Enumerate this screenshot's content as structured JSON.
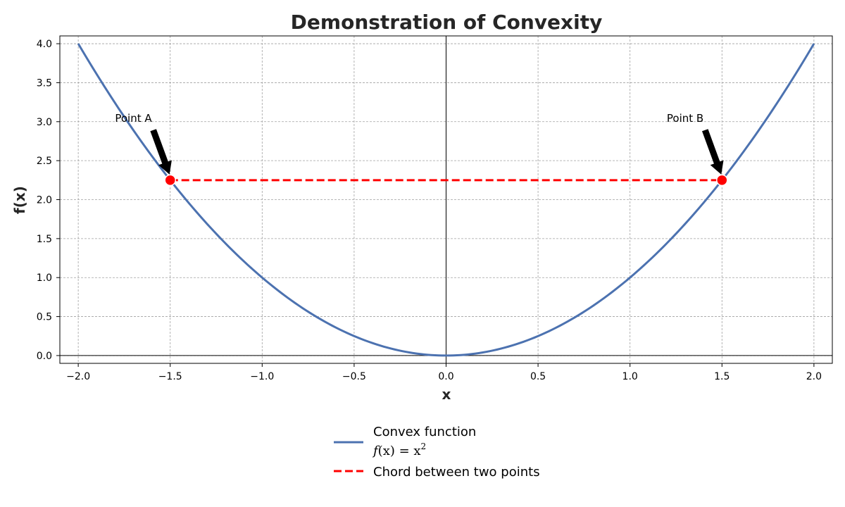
{
  "chart_data": {
    "type": "line",
    "title": "Demonstration of Convexity",
    "xlabel": "x",
    "ylabel": "f(x)",
    "xlim": [
      -2.1,
      2.1
    ],
    "ylim": [
      -0.1,
      4.1
    ],
    "xticks": [
      -2.0,
      -1.5,
      -1.0,
      -0.5,
      0.0,
      0.5,
      1.0,
      1.5,
      2.0
    ],
    "xtick_labels": [
      "−2.0",
      "−1.5",
      "−1.0",
      "−0.5",
      "0.0",
      "0.5",
      "1.0",
      "1.5",
      "2.0"
    ],
    "yticks": [
      0.0,
      0.5,
      1.0,
      1.5,
      2.0,
      2.5,
      3.0,
      3.5,
      4.0
    ],
    "ytick_labels": [
      "0.0",
      "0.5",
      "1.0",
      "1.5",
      "2.0",
      "2.5",
      "3.0",
      "3.5",
      "4.0"
    ],
    "grid": true,
    "zero_lines": true,
    "legend_position": "bottom-center, outside plot",
    "series": [
      {
        "name": "Convex function",
        "name_line2_prefix": "f",
        "name_line2_mid": "(x) = x",
        "name_line2_exp": "2",
        "style": "solid",
        "color": "#4c72b0",
        "function": "x^2",
        "x_range": [
          -2.0,
          2.0
        ]
      },
      {
        "name": "Chord between two points",
        "style": "dashed",
        "color": "#ff0000",
        "x": [
          -1.5,
          1.5
        ],
        "y": [
          2.25,
          2.25
        ]
      }
    ],
    "points": [
      {
        "x": -1.5,
        "y": 2.25,
        "color": "#ff0000"
      },
      {
        "x": 1.5,
        "y": 2.25,
        "color": "#ff0000"
      }
    ],
    "annotations": [
      {
        "text": "Point A",
        "point_x": -1.5,
        "point_y": 2.25,
        "text_x": -1.8,
        "text_y": 3.0
      },
      {
        "text": "Point B",
        "point_x": 1.5,
        "point_y": 2.25,
        "text_x": 1.2,
        "text_y": 3.0
      }
    ]
  }
}
